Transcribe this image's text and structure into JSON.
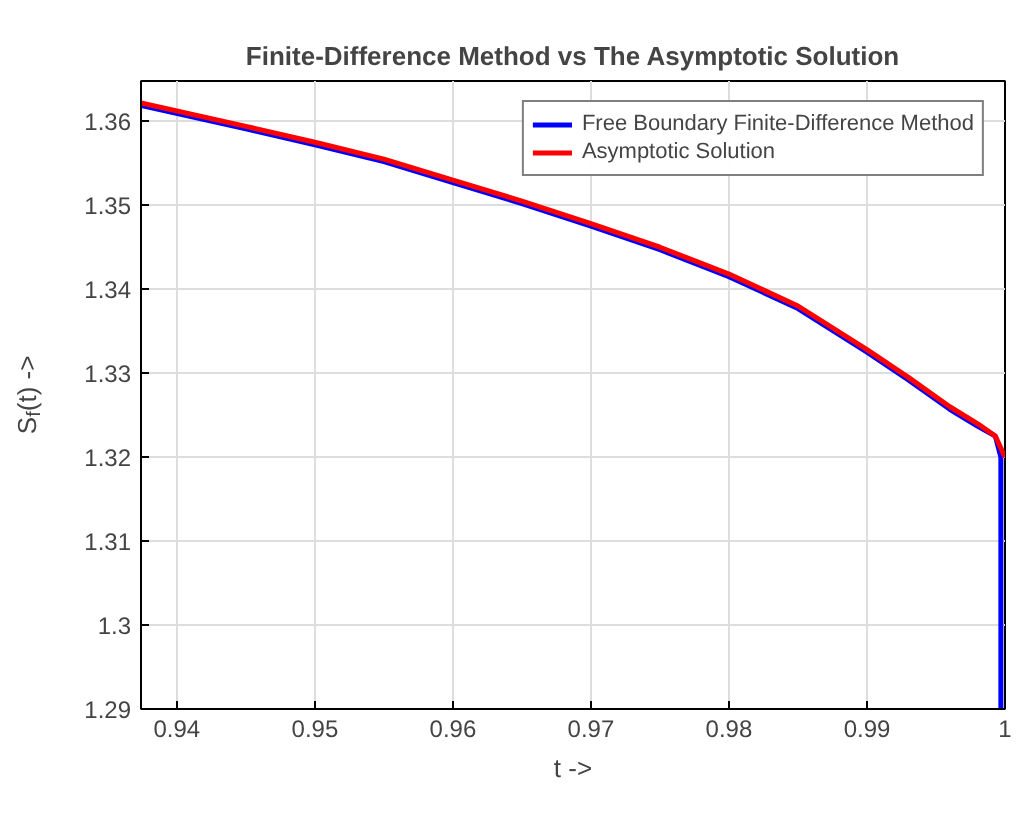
{
  "chart_data": {
    "type": "line",
    "title": "Finite-Difference Method vs The Asymptotic Solution",
    "xlabel": "t ->",
    "ylabel": "S$_{f}$(t) ->",
    "xlim": [
      0.9374,
      1.0
    ],
    "ylim": [
      1.29,
      1.3648
    ],
    "xticks": [
      0.94,
      0.95,
      0.96,
      0.97,
      0.98,
      0.99,
      1
    ],
    "yticks": [
      1.29,
      1.3,
      1.31,
      1.32,
      1.33,
      1.34,
      1.35,
      1.36
    ],
    "grid": true,
    "legend": "top right",
    "line_style": "solid",
    "series": [
      {
        "name": "Free Boundary Finite-Difference Method",
        "color": "#0000ff",
        "x": [
          0.9374,
          0.945,
          0.95,
          0.955,
          0.96,
          0.965,
          0.97,
          0.975,
          0.98,
          0.985,
          0.99,
          0.993,
          0.996,
          0.998,
          0.9993,
          0.9997,
          0.9997
        ],
        "values": [
          1.3619,
          1.3591,
          1.3572,
          1.3552,
          1.3527,
          1.3502,
          1.3475,
          1.3447,
          1.3415,
          1.3377,
          1.3325,
          1.3292,
          1.3257,
          1.3237,
          1.3225,
          1.32,
          1.29
        ]
      },
      {
        "name": "Asymptotic Solution",
        "color": "#ff0000",
        "x": [
          0.9374,
          0.945,
          0.95,
          0.955,
          0.96,
          0.965,
          0.97,
          0.975,
          0.98,
          0.985,
          0.99,
          0.993,
          0.996,
          0.998,
          0.9993,
          1.0
        ],
        "values": [
          1.3622,
          1.3594,
          1.3575,
          1.3555,
          1.353,
          1.3505,
          1.3478,
          1.345,
          1.3418,
          1.338,
          1.3328,
          1.3295,
          1.326,
          1.324,
          1.3225,
          1.32
        ]
      }
    ]
  }
}
